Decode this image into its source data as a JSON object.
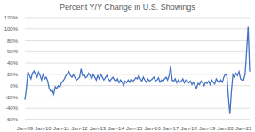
{
  "chart_data": {
    "type": "line",
    "title": "Percent Y/Y Change in U.S. Showings",
    "categories": [
      "Jan-09",
      null,
      null,
      null,
      null,
      null,
      null,
      null,
      null,
      null,
      null,
      null,
      "Jan-10",
      null,
      null,
      null,
      null,
      null,
      null,
      null,
      null,
      null,
      null,
      null,
      "Jan-11",
      null,
      null,
      null,
      null,
      null,
      null,
      null,
      null,
      null,
      null,
      null,
      "Jan-12",
      null,
      null,
      null,
      null,
      null,
      null,
      null,
      null,
      null,
      null,
      null,
      "Jan-13",
      null,
      null,
      null,
      null,
      null,
      null,
      null,
      null,
      null,
      null,
      null,
      "Jan-14",
      null,
      null,
      null,
      null,
      null,
      null,
      null,
      null,
      null,
      null,
      null,
      "Jan-15",
      null,
      null,
      null,
      null,
      null,
      null,
      null,
      null,
      null,
      null,
      null,
      "Jan-16",
      null,
      null,
      null,
      null,
      null,
      null,
      null,
      null,
      null,
      null,
      null,
      "Jan-17",
      null,
      null,
      null,
      null,
      null,
      null,
      null,
      null,
      null,
      null,
      null,
      "Jan-18",
      null,
      null,
      null,
      null,
      null,
      null,
      null,
      null,
      null,
      null,
      null,
      "Jan-19",
      null,
      null,
      null,
      null,
      null,
      null,
      null,
      null,
      null,
      null,
      null,
      "Jan-20",
      null,
      null,
      null,
      null,
      null,
      null,
      null,
      null,
      null,
      null,
      null,
      "Jan-21",
      null,
      null,
      null,
      null
    ],
    "values": [
      -25,
      -5,
      25,
      18,
      12,
      22,
      26,
      20,
      15,
      24,
      18,
      10,
      20,
      12,
      15,
      8,
      -5,
      -10,
      -8,
      -15,
      -2,
      -5,
      0,
      -3,
      5,
      8,
      12,
      18,
      22,
      25,
      18,
      15,
      20,
      14,
      10,
      12,
      15,
      30,
      18,
      20,
      14,
      16,
      22,
      18,
      12,
      20,
      15,
      10,
      18,
      12,
      20,
      15,
      10,
      14,
      18,
      12,
      8,
      12,
      15,
      10,
      8,
      12,
      5,
      10,
      6,
      0,
      8,
      5,
      10,
      6,
      12,
      8,
      10,
      14,
      12,
      18,
      12,
      8,
      15,
      10,
      6,
      12,
      8,
      10,
      12,
      15,
      8,
      10,
      14,
      6,
      10,
      8,
      12,
      15,
      10,
      18,
      35,
      10,
      8,
      12,
      5,
      10,
      6,
      8,
      12,
      5,
      10,
      8,
      5,
      8,
      2,
      6,
      0,
      -5,
      4,
      2,
      8,
      5,
      0,
      6,
      4,
      8,
      2,
      10,
      6,
      3,
      12,
      8,
      5,
      10,
      6,
      15,
      20,
      18,
      -20,
      -50,
      -10,
      20,
      15,
      22,
      18,
      25,
      12,
      10,
      10,
      20,
      60,
      105,
      25
    ],
    "color": "#4472c4",
    "ylim": [
      -60,
      120
    ],
    "yticks": [
      {
        "value": -60,
        "label": "-60%"
      },
      {
        "value": -40,
        "label": "-40%"
      },
      {
        "value": -20,
        "label": "-20%"
      },
      {
        "value": 0,
        "label": "0%"
      },
      {
        "value": 20,
        "label": "20%"
      },
      {
        "value": 40,
        "label": "40%"
      },
      {
        "value": 60,
        "label": "60%"
      },
      {
        "value": 80,
        "label": "80%"
      },
      {
        "value": 100,
        "label": "100%"
      },
      {
        "value": 120,
        "label": "120%"
      }
    ],
    "grid": true
  }
}
